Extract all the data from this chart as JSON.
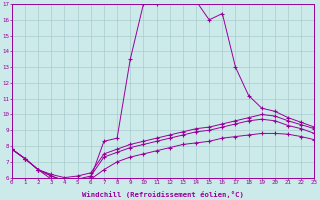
{
  "background_color": "#cceaea",
  "grid_color": "#aacccc",
  "line_color": "#990099",
  "xlim": [
    0,
    23
  ],
  "ylim": [
    6,
    17
  ],
  "xticks": [
    0,
    1,
    2,
    3,
    4,
    5,
    6,
    7,
    8,
    9,
    10,
    11,
    12,
    13,
    14,
    15,
    16,
    17,
    18,
    19,
    20,
    21,
    22,
    23
  ],
  "yticks": [
    6,
    7,
    8,
    9,
    10,
    11,
    12,
    13,
    14,
    15,
    16,
    17
  ],
  "xlabel": "Windchill (Refroidissement éolien,°C)",
  "series": [
    [
      7.8,
      7.2,
      6.5,
      5.9,
      5.7,
      5.8,
      5.9,
      6.5,
      7.0,
      7.3,
      7.5,
      7.7,
      7.9,
      8.1,
      8.2,
      8.3,
      8.5,
      8.6,
      8.7,
      8.8,
      8.8,
      8.75,
      8.6,
      8.4
    ],
    [
      7.8,
      7.2,
      6.5,
      6.1,
      5.8,
      5.8,
      6.0,
      8.3,
      8.5,
      13.5,
      17.0,
      17.0,
      17.2,
      17.3,
      17.2,
      16.0,
      16.4,
      13.0,
      11.2,
      10.4,
      10.2,
      9.8,
      9.5,
      9.2
    ],
    [
      7.8,
      7.2,
      6.5,
      6.2,
      6.0,
      6.1,
      6.3,
      7.5,
      7.8,
      8.1,
      8.3,
      8.5,
      8.7,
      8.9,
      9.1,
      9.2,
      9.4,
      9.6,
      9.8,
      10.0,
      9.9,
      9.6,
      9.35,
      9.1
    ],
    [
      7.8,
      7.2,
      6.5,
      6.1,
      5.8,
      5.9,
      6.1,
      7.3,
      7.6,
      7.9,
      8.1,
      8.3,
      8.5,
      8.7,
      8.9,
      9.0,
      9.2,
      9.4,
      9.6,
      9.7,
      9.6,
      9.3,
      9.1,
      8.8
    ]
  ]
}
